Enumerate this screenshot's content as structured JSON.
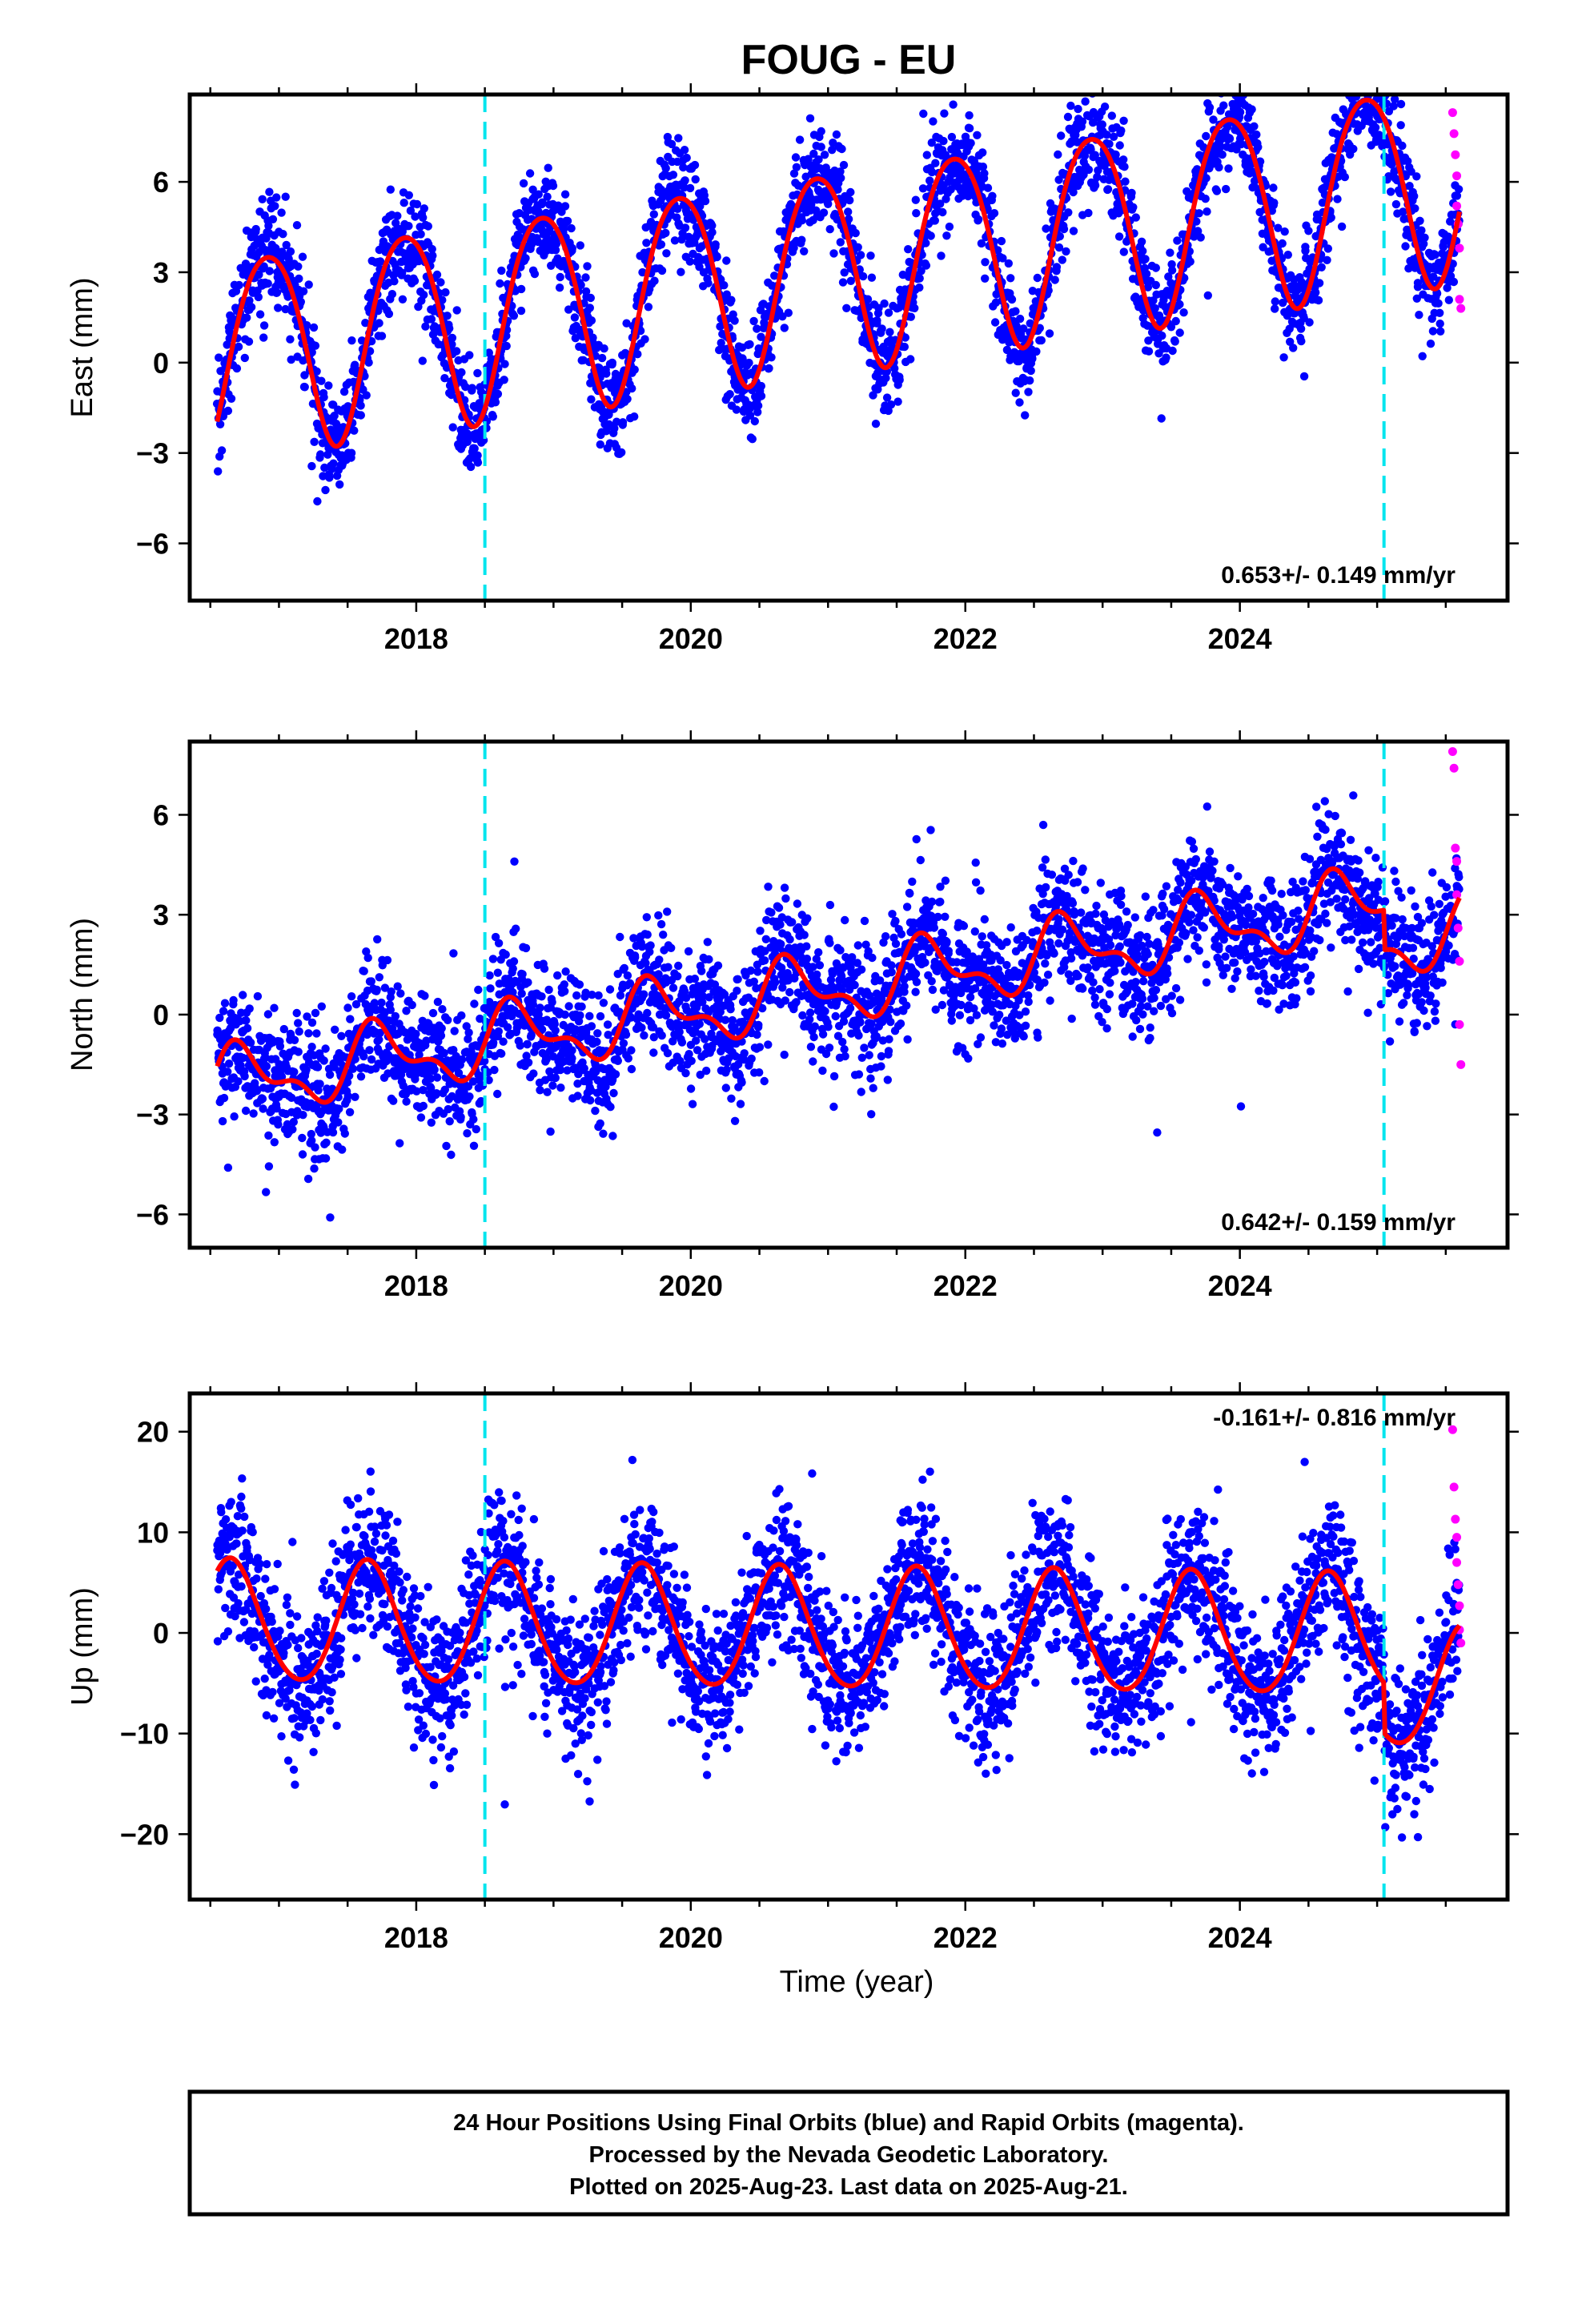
{
  "title": "FOUG - EU",
  "xlabel": "Time (year)",
  "footer": {
    "line1": "24 Hour Positions Using Final Orbits (blue) and Rapid Orbits (magenta).",
    "line2": "Processed by the Nevada Geodetic Laboratory.",
    "line3": "Plotted on 2025-Aug-23. Last data on 2025-Aug-21."
  },
  "colors": {
    "final": "#0000ff",
    "rapid": "#ff00ff",
    "model": "#ff0000",
    "offset": "#00e5ee"
  },
  "chart_data": [
    {
      "type": "scatter",
      "component": "east",
      "ylabel": "East (mm)",
      "rate_label": "0.653+/- 0.149 mm/yr",
      "xlim": [
        2016.35,
        2025.95
      ],
      "ylim": [
        -7.9,
        8.9
      ],
      "yticks": [
        -6,
        -3,
        0,
        3,
        6
      ],
      "xticks": [
        2018,
        2020,
        2022,
        2024
      ],
      "offsets": [
        2018.5,
        2025.05
      ],
      "model": {
        "start": 2016.55,
        "end": 2025.6,
        "y0": 0.3,
        "rate": 0.653,
        "annual_amp": 3.3,
        "annual_phase": 2016.67,
        "semiannual_amp": 0.35,
        "semiannual_phase": 2016.55
      },
      "scatter_sd": 0.9,
      "rapid": [
        {
          "x": 2025.55,
          "y": 8.3
        },
        {
          "x": 2025.56,
          "y": 7.6
        },
        {
          "x": 2025.57,
          "y": 6.9
        },
        {
          "x": 2025.58,
          "y": 6.2
        },
        {
          "x": 2025.58,
          "y": 5.2
        },
        {
          "x": 2025.59,
          "y": 4.6
        },
        {
          "x": 2025.6,
          "y": 3.8
        },
        {
          "x": 2025.6,
          "y": 2.1
        },
        {
          "x": 2025.61,
          "y": 1.8
        }
      ]
    },
    {
      "type": "scatter",
      "component": "north",
      "ylabel": "North (mm)",
      "rate_label": "0.642+/- 0.159 mm/yr",
      "xlim": [
        2016.35,
        2025.95
      ],
      "ylim": [
        -7.0,
        8.2
      ],
      "yticks": [
        -6,
        -3,
        0,
        3,
        6
      ],
      "xticks": [
        2018,
        2020,
        2022,
        2024
      ],
      "offsets": [
        2018.5,
        2025.05
      ],
      "model": {
        "start": 2016.55,
        "end": 2025.6,
        "y0": -2.1,
        "rate": 0.642,
        "annual_amp": 0.9,
        "annual_phase": 2016.48,
        "semiannual_amp": 0.45,
        "semiannual_phase": 2016.52
      },
      "scatter_sd": 0.95,
      "rapid": [
        {
          "x": 2025.55,
          "y": 7.9
        },
        {
          "x": 2025.56,
          "y": 7.4
        },
        {
          "x": 2025.57,
          "y": 5.0
        },
        {
          "x": 2025.58,
          "y": 4.6
        },
        {
          "x": 2025.58,
          "y": 3.6
        },
        {
          "x": 2025.59,
          "y": 2.6
        },
        {
          "x": 2025.6,
          "y": 1.6
        },
        {
          "x": 2025.6,
          "y": -0.3
        },
        {
          "x": 2025.61,
          "y": -1.5
        }
      ]
    },
    {
      "type": "scatter",
      "component": "up",
      "ylabel": "Up (mm)",
      "rate_label": "-0.161+/- 0.816 mm/yr",
      "xlim": [
        2016.35,
        2025.95
      ],
      "ylim": [
        -26.5,
        23.8
      ],
      "yticks": [
        -20,
        -10,
        0,
        10,
        20
      ],
      "xticks": [
        2018,
        2020,
        2022,
        2024
      ],
      "offsets": [
        2018.5,
        2025.05
      ],
      "model": {
        "start": 2016.55,
        "end": 2025.6,
        "y0": 1.0,
        "rate": -0.161,
        "annual_amp": 6.0,
        "annual_phase": 2016.4,
        "semiannual_amp": 0.5,
        "semiannual_phase": 2016.5
      },
      "scatter_sd": 3.6,
      "rapid": [
        {
          "x": 2025.55,
          "y": 20.2
        },
        {
          "x": 2025.56,
          "y": 14.5
        },
        {
          "x": 2025.57,
          "y": 11.3
        },
        {
          "x": 2025.58,
          "y": 9.5
        },
        {
          "x": 2025.58,
          "y": 7.0
        },
        {
          "x": 2025.59,
          "y": 4.8
        },
        {
          "x": 2025.6,
          "y": 2.7
        },
        {
          "x": 2025.6,
          "y": 0.3
        },
        {
          "x": 2025.61,
          "y": -1.0
        }
      ]
    }
  ]
}
